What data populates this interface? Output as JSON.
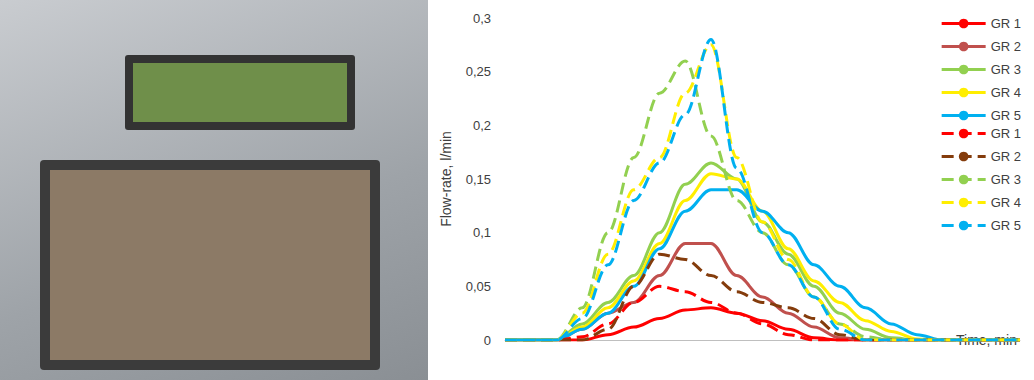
{
  "chart_data": {
    "type": "line",
    "y_label": "Flow-rate, l/min",
    "x_label": "Time, min",
    "x": [
      0,
      5,
      10,
      15,
      20,
      25,
      30,
      35,
      40,
      45,
      50,
      55,
      60,
      65,
      70,
      75,
      80,
      85,
      90,
      95,
      100
    ],
    "xlim": [
      0,
      100
    ],
    "ylim": [
      0,
      0.3
    ],
    "yticks": [
      0,
      {
        "value": 0.05,
        "label": "0,05"
      },
      {
        "value": 0.1,
        "label": "0,1"
      },
      {
        "value": 0.15,
        "label": "0,15"
      },
      {
        "value": 0.2,
        "label": "0,2"
      },
      {
        "value": 0.25,
        "label": "0,25"
      },
      {
        "value": 0.3,
        "label": "0,3"
      }
    ],
    "tick_labels": "y",
    "grid": false,
    "legend": "right",
    "series": [
      {
        "name": "GR 1",
        "color": "#ff0000",
        "line_style": "solid",
        "values": [
          0,
          0,
          0,
          0,
          0.005,
          0.012,
          0.02,
          0.028,
          0.03,
          0.025,
          0.018,
          0.01,
          0.002,
          0,
          0,
          0,
          0,
          0,
          0,
          0,
          0
        ]
      },
      {
        "name": "GR 2",
        "color": "#c0504d",
        "line_style": "solid",
        "values": [
          0,
          0,
          0,
          0.01,
          0.025,
          0.035,
          0.06,
          0.09,
          0.09,
          0.06,
          0.04,
          0.025,
          0.012,
          0.002,
          0,
          0,
          0,
          0,
          0,
          0,
          0
        ]
      },
      {
        "name": "GR 3",
        "color": "#92d050",
        "line_style": "solid",
        "values": [
          0,
          0,
          0,
          0.015,
          0.035,
          0.06,
          0.1,
          0.145,
          0.165,
          0.15,
          0.11,
          0.08,
          0.05,
          0.025,
          0.01,
          0.002,
          0,
          0,
          0,
          0,
          0
        ]
      },
      {
        "name": "GR 4",
        "color": "#ffee00",
        "line_style": "solid",
        "values": [
          0,
          0,
          0,
          0.012,
          0.03,
          0.055,
          0.09,
          0.13,
          0.155,
          0.15,
          0.12,
          0.085,
          0.055,
          0.035,
          0.018,
          0.008,
          0.001,
          0,
          0,
          0,
          0
        ]
      },
      {
        "name": "GR 5",
        "color": "#00b0f0",
        "line_style": "solid",
        "values": [
          0,
          0,
          0,
          0.01,
          0.025,
          0.05,
          0.085,
          0.12,
          0.14,
          0.14,
          0.12,
          0.1,
          0.07,
          0.05,
          0.03,
          0.015,
          0.005,
          0,
          0,
          0,
          0
        ]
      },
      {
        "name": "GR 1",
        "color": "#ff0000",
        "line_style": "dashed",
        "values": [
          0,
          0,
          0,
          0.003,
          0.015,
          0.035,
          0.05,
          0.045,
          0.035,
          0.025,
          0.015,
          0.005,
          0,
          0,
          0,
          0,
          0,
          0,
          0,
          0,
          0
        ]
      },
      {
        "name": "GR 2",
        "color": "#843c0c",
        "line_style": "dashed",
        "values": [
          0,
          0,
          0,
          0,
          0.01,
          0.05,
          0.08,
          0.075,
          0.06,
          0.045,
          0.035,
          0.03,
          0.02,
          0.005,
          0,
          0,
          0,
          0,
          0,
          0,
          0
        ]
      },
      {
        "name": "GR 3",
        "color": "#92d050",
        "line_style": "dashed",
        "values": [
          0,
          0,
          0,
          0.03,
          0.1,
          0.17,
          0.23,
          0.26,
          0.19,
          0.13,
          0.1,
          0.07,
          0.04,
          0.015,
          0.003,
          0,
          0,
          0,
          0,
          0,
          0
        ]
      },
      {
        "name": "GR 4",
        "color": "#ffee00",
        "line_style": "dashed",
        "values": [
          0,
          0,
          0,
          0.025,
          0.08,
          0.14,
          0.17,
          0.23,
          0.275,
          0.17,
          0.11,
          0.075,
          0.04,
          0.015,
          0,
          0,
          0,
          0,
          0,
          0,
          0
        ]
      },
      {
        "name": "GR 5",
        "color": "#00b0f0",
        "line_style": "dashed",
        "values": [
          0,
          0,
          0,
          0.02,
          0.07,
          0.13,
          0.165,
          0.21,
          0.28,
          0.16,
          0.1,
          0.07,
          0.04,
          0.01,
          0,
          0,
          0,
          0,
          0,
          0,
          0
        ]
      }
    ]
  }
}
